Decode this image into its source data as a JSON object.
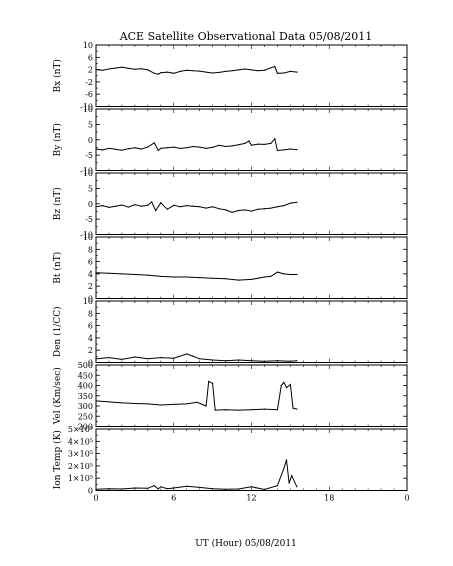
{
  "chart_data": {
    "type": "line",
    "title": "ACE Satellite Observational Data   05/08/2011",
    "xlabel": "UT (Hour)   05/08/2011",
    "xticks": [
      "0",
      "6",
      "12",
      "18",
      "0"
    ],
    "xlim": [
      0,
      24
    ],
    "grid": false,
    "panels": [
      {
        "ylabel": "Bx (nT)",
        "ylim": [
          -10,
          10
        ],
        "yticks": [
          "10",
          "6",
          "2",
          "-2",
          "-6",
          "-10"
        ],
        "series": [
          {
            "x": [
              0,
              0.5,
              1,
              1.5,
              2,
              2.5,
              3,
              3.5,
              4,
              4.5,
              4.8,
              5,
              5.5,
              6,
              6.5,
              7,
              7.5,
              8,
              8.5,
              9,
              9.5,
              10,
              10.5,
              11,
              11.5,
              12,
              12.5,
              13,
              13.5,
              13.8,
              14,
              14.5,
              15,
              15.5
            ],
            "y": [
              2,
              1.8,
              2.2,
              2.5,
              2.8,
              2.4,
              2.1,
              2.3,
              1.9,
              0.8,
              0.5,
              1.0,
              1.2,
              0.8,
              1.4,
              1.8,
              1.6,
              1.5,
              1.2,
              0.9,
              1.1,
              1.4,
              1.6,
              1.9,
              2.2,
              1.9,
              1.6,
              1.8,
              2.6,
              3.0,
              0.8,
              0.9,
              1.4,
              1.2
            ]
          }
        ]
      },
      {
        "ylabel": "By (nT)",
        "ylim": [
          -10,
          10
        ],
        "yticks": [
          "10",
          "5",
          "0",
          "-5",
          "-10"
        ],
        "series": [
          {
            "x": [
              0,
              0.5,
              1,
              1.5,
              2,
              2.5,
              3,
              3.5,
              4,
              4.5,
              4.8,
              5,
              5.5,
              6,
              6.5,
              7,
              7.5,
              8,
              8.5,
              9,
              9.5,
              10,
              10.5,
              11,
              11.5,
              11.8,
              12,
              12.5,
              13,
              13.5,
              13.8,
              14,
              14.5,
              15,
              15.5
            ],
            "y": [
              -3.0,
              -3.3,
              -2.8,
              -3.1,
              -3.4,
              -2.9,
              -2.6,
              -3.0,
              -2.4,
              -1.0,
              -3.5,
              -2.8,
              -2.6,
              -2.4,
              -2.8,
              -2.6,
              -2.2,
              -2.4,
              -2.8,
              -2.5,
              -1.8,
              -2.2,
              -2.0,
              -1.6,
              -1.2,
              -0.4,
              -1.8,
              -1.4,
              -1.5,
              -1.2,
              0.3,
              -3.5,
              -3.3,
              -3.0,
              -3.2
            ]
          }
        ]
      },
      {
        "ylabel": "Bz (nT)",
        "ylim": [
          -10,
          10
        ],
        "yticks": [
          "10",
          "5",
          "0",
          "-5",
          "-10"
        ],
        "series": [
          {
            "x": [
              0,
              0.5,
              1,
              1.5,
              2,
              2.5,
              3,
              3.5,
              4,
              4.3,
              4.6,
              5,
              5.5,
              6,
              6.5,
              7,
              7.5,
              8,
              8.5,
              9,
              9.5,
              10,
              10.5,
              11,
              11.5,
              12,
              12.5,
              13,
              13.5,
              14,
              14.5,
              15,
              15.5
            ],
            "y": [
              -1.0,
              -0.6,
              -1.2,
              -0.8,
              -0.4,
              -1.1,
              -0.3,
              -0.8,
              -0.5,
              0.6,
              -2.2,
              0.3,
              -1.8,
              -0.5,
              -1.0,
              -0.6,
              -0.8,
              -1.0,
              -1.4,
              -1.0,
              -1.6,
              -2.0,
              -2.8,
              -2.2,
              -2.0,
              -2.4,
              -1.8,
              -1.6,
              -1.4,
              -1.0,
              -0.6,
              0.2,
              0.5
            ]
          }
        ]
      },
      {
        "ylabel": "Bt (nT)",
        "ylim": [
          0,
          10
        ],
        "yticks": [
          "10",
          "8",
          "6",
          "4",
          "2",
          "0"
        ],
        "series": [
          {
            "x": [
              0,
              1,
              2,
              3,
              4,
              5,
              6,
              7,
              8,
              9,
              10,
              11,
              12,
              12.5,
              13,
              13.5,
              14,
              14.5,
              15,
              15.5
            ],
            "y": [
              4.2,
              4.1,
              4.0,
              3.9,
              3.8,
              3.6,
              3.5,
              3.5,
              3.4,
              3.3,
              3.2,
              3.0,
              3.1,
              3.3,
              3.5,
              3.6,
              4.3,
              4.0,
              3.9,
              3.9
            ]
          }
        ]
      },
      {
        "ylabel": "Den (1/CC)",
        "ylim": [
          0,
          10
        ],
        "yticks": [
          "10",
          "8",
          "6",
          "4",
          "2",
          "0"
        ],
        "series": [
          {
            "x": [
              0,
              1,
              2,
              3,
              4,
              5,
              6,
              7,
              7.5,
              8,
              9,
              10,
              11,
              12,
              13,
              14,
              15,
              15.5
            ],
            "y": [
              0.6,
              0.8,
              0.5,
              0.9,
              0.6,
              0.8,
              0.7,
              1.4,
              1.0,
              0.6,
              0.4,
              0.3,
              0.4,
              0.3,
              0.2,
              0.3,
              0.2,
              0.3
            ]
          }
        ]
      },
      {
        "ylabel": "Vel (Km/sec)",
        "ylim": [
          200,
          500
        ],
        "yticks": [
          "500",
          "450",
          "400",
          "350",
          "300",
          "250",
          "200"
        ],
        "series": [
          {
            "x": [
              0,
              1,
              2,
              3,
              4,
              5,
              6,
              7,
              7.8,
              8.5,
              8.7,
              9.0,
              9.2,
              10,
              11,
              12,
              13,
              14,
              14.3,
              14.5,
              14.7,
              15.0,
              15.2,
              15.5
            ],
            "y": [
              325,
              320,
              315,
              312,
              310,
              305,
              308,
              310,
              318,
              300,
              420,
              410,
              280,
              282,
              280,
              282,
              285,
              282,
              400,
              415,
              390,
              405,
              290,
              285
            ]
          }
        ]
      },
      {
        "ylabel": "Ion Temp (K)",
        "ylim": [
          0,
          500000
        ],
        "yticks": [
          "5×10⁵",
          "4×10⁵",
          "3×10⁵",
          "2×10⁵",
          "1×10⁵",
          "0"
        ],
        "series": [
          {
            "x": [
              0,
              1,
              2,
              3,
              4,
              4.5,
              4.8,
              5,
              5.5,
              6,
              7,
              8,
              9,
              10,
              11,
              12,
              13,
              14,
              14.5,
              14.7,
              14.9,
              15.1,
              15.5
            ],
            "y": [
              10000,
              15000,
              12000,
              20000,
              18000,
              40000,
              12000,
              30000,
              15000,
              20000,
              35000,
              25000,
              15000,
              10000,
              12000,
              30000,
              8000,
              40000,
              180000,
              250000,
              60000,
              120000,
              30000
            ]
          }
        ]
      }
    ]
  }
}
